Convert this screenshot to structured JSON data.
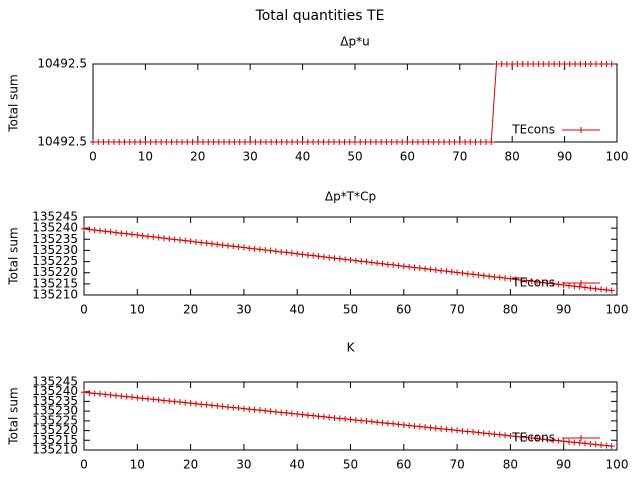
{
  "title": "Total quantities TE",
  "chart_data": [
    {
      "type": "line",
      "title": "Δp*u",
      "ylabel": "Total sum",
      "legend": "right bottom",
      "x": [
        0,
        1,
        2,
        3,
        4,
        5,
        6,
        7,
        8,
        9,
        10,
        11,
        12,
        13,
        14,
        15,
        16,
        17,
        18,
        19,
        20,
        21,
        22,
        23,
        24,
        25,
        26,
        27,
        28,
        29,
        30,
        31,
        32,
        33,
        34,
        35,
        36,
        37,
        38,
        39,
        40,
        41,
        42,
        43,
        44,
        45,
        46,
        47,
        48,
        49,
        50,
        51,
        52,
        53,
        54,
        55,
        56,
        57,
        58,
        59,
        60,
        61,
        62,
        63,
        64,
        65,
        66,
        67,
        68,
        69,
        70,
        71,
        72,
        73,
        74,
        75,
        76,
        77,
        78,
        79,
        80,
        81,
        82,
        83,
        84,
        85,
        86,
        87,
        88,
        89,
        90,
        91,
        92,
        93,
        94,
        95,
        96,
        97,
        98,
        99
      ],
      "series": [
        {
          "name": "TEcons",
          "color": "#e00000",
          "values": [
            10492.46,
            10492.46,
            10492.46,
            10492.46,
            10492.46,
            10492.46,
            10492.46,
            10492.46,
            10492.46,
            10492.46,
            10492.46,
            10492.46,
            10492.46,
            10492.46,
            10492.46,
            10492.46,
            10492.46,
            10492.46,
            10492.46,
            10492.46,
            10492.46,
            10492.46,
            10492.46,
            10492.46,
            10492.46,
            10492.46,
            10492.46,
            10492.46,
            10492.46,
            10492.46,
            10492.46,
            10492.46,
            10492.46,
            10492.46,
            10492.46,
            10492.46,
            10492.46,
            10492.46,
            10492.46,
            10492.46,
            10492.46,
            10492.46,
            10492.46,
            10492.46,
            10492.46,
            10492.46,
            10492.46,
            10492.46,
            10492.46,
            10492.46,
            10492.46,
            10492.46,
            10492.46,
            10492.46,
            10492.46,
            10492.46,
            10492.46,
            10492.46,
            10492.46,
            10492.46,
            10492.46,
            10492.46,
            10492.46,
            10492.46,
            10492.46,
            10492.46,
            10492.46,
            10492.46,
            10492.46,
            10492.46,
            10492.46,
            10492.46,
            10492.46,
            10492.46,
            10492.46,
            10492.46,
            10492.46,
            10492.54,
            10492.54,
            10492.54,
            10492.54,
            10492.54,
            10492.54,
            10492.54,
            10492.54,
            10492.54,
            10492.54,
            10492.54,
            10492.54,
            10492.54,
            10492.54,
            10492.54,
            10492.54,
            10492.54,
            10492.54,
            10492.54,
            10492.54,
            10492.54,
            10492.54,
            10492.54
          ]
        }
      ],
      "xlim": [
        0,
        100
      ],
      "xticks": [
        0,
        10,
        20,
        30,
        40,
        50,
        60,
        70,
        80,
        90,
        100
      ],
      "ylim": [
        10492.46,
        10492.54
      ],
      "yticks": [
        {
          "value": 10492.46,
          "label": "10492.5"
        },
        {
          "value": 10492.54,
          "label": "10492.5"
        }
      ]
    },
    {
      "type": "line",
      "title": "Δp*T*Cp",
      "ylabel": "Total sum",
      "legend": "right bottom",
      "x": [
        0,
        1,
        2,
        3,
        4,
        5,
        6,
        7,
        8,
        9,
        10,
        11,
        12,
        13,
        14,
        15,
        16,
        17,
        18,
        19,
        20,
        21,
        22,
        23,
        24,
        25,
        26,
        27,
        28,
        29,
        30,
        31,
        32,
        33,
        34,
        35,
        36,
        37,
        38,
        39,
        40,
        41,
        42,
        43,
        44,
        45,
        46,
        47,
        48,
        49,
        50,
        51,
        52,
        53,
        54,
        55,
        56,
        57,
        58,
        59,
        60,
        61,
        62,
        63,
        64,
        65,
        66,
        67,
        68,
        69,
        70,
        71,
        72,
        73,
        74,
        75,
        76,
        77,
        78,
        79,
        80,
        81,
        82,
        83,
        84,
        85,
        86,
        87,
        88,
        89,
        90,
        91,
        92,
        93,
        94,
        95,
        96,
        97,
        98,
        99
      ],
      "series": [
        {
          "name": "TEcons",
          "color": "#e00000",
          "values": [
            135239.7,
            135239.4,
            135239.1,
            135238.9,
            135238.6,
            135238.3,
            135238.0,
            135237.7,
            135237.5,
            135237.2,
            135236.9,
            135236.6,
            135236.3,
            135236.1,
            135235.8,
            135235.5,
            135235.2,
            135234.9,
            135234.7,
            135234.4,
            135234.1,
            135233.8,
            135233.5,
            135233.3,
            135233.0,
            135232.7,
            135232.4,
            135232.1,
            135231.9,
            135231.6,
            135231.3,
            135231.0,
            135230.7,
            135230.5,
            135230.2,
            135229.9,
            135229.6,
            135229.3,
            135229.1,
            135228.8,
            135228.5,
            135228.2,
            135227.9,
            135227.7,
            135227.4,
            135227.1,
            135226.8,
            135226.5,
            135226.3,
            135226.0,
            135225.7,
            135225.4,
            135225.1,
            135224.9,
            135224.6,
            135224.3,
            135224.0,
            135223.7,
            135223.5,
            135223.2,
            135222.9,
            135222.6,
            135222.3,
            135222.1,
            135221.8,
            135221.5,
            135221.2,
            135220.9,
            135220.7,
            135220.4,
            135220.1,
            135219.8,
            135219.5,
            135219.3,
            135219.0,
            135218.7,
            135218.4,
            135218.1,
            135217.9,
            135217.6,
            135217.3,
            135217.0,
            135216.7,
            135216.5,
            135216.2,
            135215.9,
            135215.6,
            135215.3,
            135215.1,
            135214.8,
            135214.5,
            135214.2,
            135213.9,
            135213.7,
            135213.4,
            135213.1,
            135212.8,
            135212.5,
            135212.3,
            135212.0
          ]
        }
      ],
      "xlim": [
        0,
        100
      ],
      "xticks": [
        0,
        10,
        20,
        30,
        40,
        50,
        60,
        70,
        80,
        90,
        100
      ],
      "ylim": [
        135210,
        135245
      ],
      "yticks": [
        135210,
        135215,
        135220,
        135225,
        135230,
        135235,
        135240,
        135245
      ]
    },
    {
      "type": "line",
      "title": "K",
      "ylabel": "Total sum",
      "legend": "right bottom",
      "x": [
        0,
        1,
        2,
        3,
        4,
        5,
        6,
        7,
        8,
        9,
        10,
        11,
        12,
        13,
        14,
        15,
        16,
        17,
        18,
        19,
        20,
        21,
        22,
        23,
        24,
        25,
        26,
        27,
        28,
        29,
        30,
        31,
        32,
        33,
        34,
        35,
        36,
        37,
        38,
        39,
        40,
        41,
        42,
        43,
        44,
        45,
        46,
        47,
        48,
        49,
        50,
        51,
        52,
        53,
        54,
        55,
        56,
        57,
        58,
        59,
        60,
        61,
        62,
        63,
        64,
        65,
        66,
        67,
        68,
        69,
        70,
        71,
        72,
        73,
        74,
        75,
        76,
        77,
        78,
        79,
        80,
        81,
        82,
        83,
        84,
        85,
        86,
        87,
        88,
        89,
        90,
        91,
        92,
        93,
        94,
        95,
        96,
        97,
        98,
        99
      ],
      "series": [
        {
          "name": "TEcons",
          "color": "#e00000",
          "values": [
            135239.7,
            135239.4,
            135239.1,
            135238.9,
            135238.6,
            135238.3,
            135238.0,
            135237.7,
            135237.5,
            135237.2,
            135236.9,
            135236.6,
            135236.3,
            135236.1,
            135235.8,
            135235.5,
            135235.2,
            135234.9,
            135234.7,
            135234.4,
            135234.1,
            135233.8,
            135233.5,
            135233.3,
            135233.0,
            135232.7,
            135232.4,
            135232.1,
            135231.9,
            135231.6,
            135231.3,
            135231.0,
            135230.7,
            135230.5,
            135230.2,
            135229.9,
            135229.6,
            135229.3,
            135229.1,
            135228.8,
            135228.5,
            135228.2,
            135227.9,
            135227.7,
            135227.4,
            135227.1,
            135226.8,
            135226.5,
            135226.3,
            135226.0,
            135225.7,
            135225.4,
            135225.1,
            135224.9,
            135224.6,
            135224.3,
            135224.0,
            135223.7,
            135223.5,
            135223.2,
            135222.9,
            135222.6,
            135222.3,
            135222.1,
            135221.8,
            135221.5,
            135221.2,
            135220.9,
            135220.7,
            135220.4,
            135220.1,
            135219.8,
            135219.5,
            135219.3,
            135219.0,
            135218.7,
            135218.4,
            135218.1,
            135217.9,
            135217.6,
            135217.3,
            135217.0,
            135216.7,
            135216.5,
            135216.2,
            135215.9,
            135215.6,
            135215.3,
            135215.1,
            135214.8,
            135214.5,
            135214.2,
            135213.9,
            135213.7,
            135213.4,
            135213.1,
            135212.8,
            135212.5,
            135212.3,
            135212.0
          ]
        }
      ],
      "xlim": [
        0,
        100
      ],
      "xticks": [
        0,
        10,
        20,
        30,
        40,
        50,
        60,
        70,
        80,
        90,
        100
      ],
      "ylim": [
        135210,
        135245
      ],
      "yticks": [
        135210,
        135215,
        135220,
        135225,
        135230,
        135235,
        135240,
        135245
      ]
    }
  ]
}
